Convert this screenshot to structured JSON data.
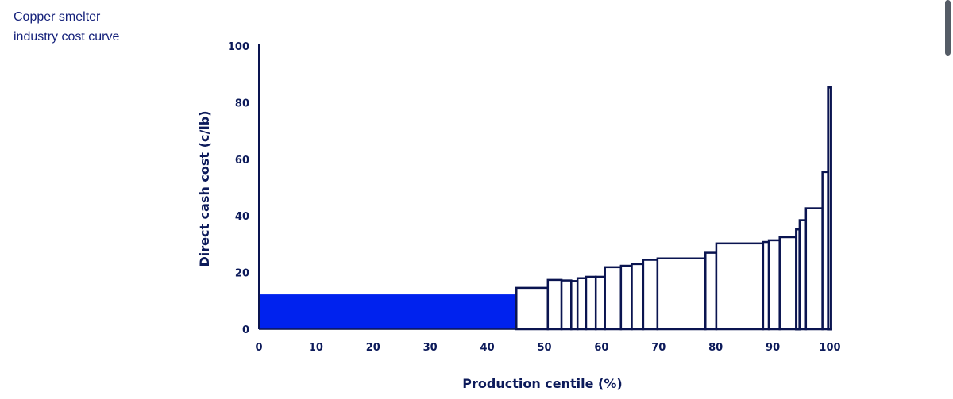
{
  "caption": {
    "line1": "Copper smelter",
    "line2": "industry cost curve"
  },
  "chart_data": {
    "type": "bar",
    "subtype": "variable-width cost curve",
    "xlabel": "Production centile (%)",
    "ylabel": "Direct cash cost (c/lb)",
    "xlim": [
      0,
      100
    ],
    "ylim": [
      0,
      100
    ],
    "xticks": [
      0,
      10,
      20,
      30,
      40,
      50,
      60,
      70,
      80,
      90,
      100
    ],
    "yticks": [
      0,
      20,
      40,
      60,
      80,
      100
    ],
    "grid": false,
    "colors": {
      "highlight": "#0022ee",
      "outline": "#0a1450",
      "text": "#0c1a5a"
    },
    "bars": [
      {
        "x0": 0,
        "x1": 45.1,
        "cost": 12.3,
        "highlight": true
      },
      {
        "x0": 45.1,
        "x1": 50.6,
        "cost": 14.6
      },
      {
        "x0": 50.6,
        "x1": 53.0,
        "cost": 17.4
      },
      {
        "x0": 53.0,
        "x1": 54.7,
        "cost": 17.2
      },
      {
        "x0": 54.7,
        "x1": 55.8,
        "cost": 17.0
      },
      {
        "x0": 55.8,
        "x1": 57.3,
        "cost": 18.0
      },
      {
        "x0": 57.3,
        "x1": 59.0,
        "cost": 18.5
      },
      {
        "x0": 59.0,
        "x1": 60.6,
        "cost": 18.5
      },
      {
        "x0": 60.6,
        "x1": 63.4,
        "cost": 21.9
      },
      {
        "x0": 63.4,
        "x1": 65.3,
        "cost": 22.4
      },
      {
        "x0": 65.3,
        "x1": 67.3,
        "cost": 23.0
      },
      {
        "x0": 67.3,
        "x1": 69.8,
        "cost": 24.5
      },
      {
        "x0": 69.8,
        "x1": 78.2,
        "cost": 25.0
      },
      {
        "x0": 78.2,
        "x1": 80.1,
        "cost": 27.0
      },
      {
        "x0": 80.1,
        "x1": 88.3,
        "cost": 30.3
      },
      {
        "x0": 88.3,
        "x1": 89.3,
        "cost": 30.8
      },
      {
        "x0": 89.3,
        "x1": 91.2,
        "cost": 31.4
      },
      {
        "x0": 91.2,
        "x1": 94.1,
        "cost": 32.5
      },
      {
        "x0": 94.1,
        "x1": 94.7,
        "cost": 35.3
      },
      {
        "x0": 94.7,
        "x1": 95.8,
        "cost": 38.5
      },
      {
        "x0": 95.8,
        "x1": 98.7,
        "cost": 42.7
      },
      {
        "x0": 98.7,
        "x1": 99.7,
        "cost": 55.5
      },
      {
        "x0": 99.7,
        "x1": 100.2,
        "cost": 85.4
      }
    ]
  }
}
